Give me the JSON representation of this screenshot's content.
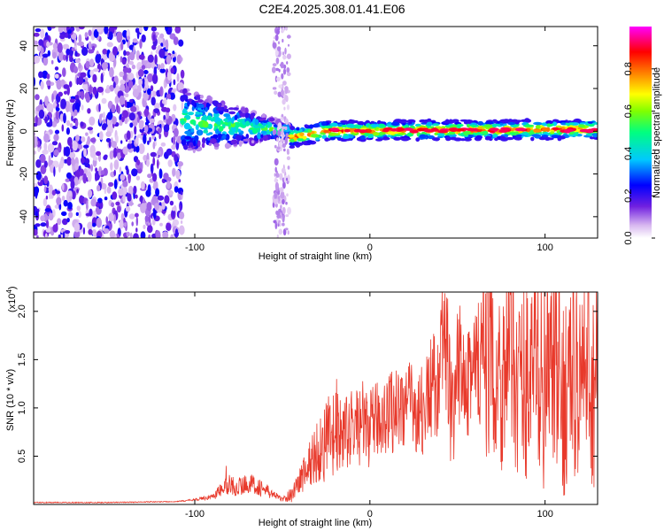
{
  "page": {
    "title": "C2E4.2025.308.01.41.E06"
  },
  "chart_data": [
    {
      "type": "heatmap",
      "xlabel": "Height of straight line (km)",
      "ylabel": "Frequency (Hz)",
      "xlim": [
        -192,
        130
      ],
      "ylim": [
        -50,
        49
      ],
      "xticks": [
        -100,
        0,
        100
      ],
      "xtick_labels": [
        "-100",
        "0",
        "100"
      ],
      "yticks": [
        -40,
        -20,
        0,
        20,
        40
      ],
      "ytick_labels": [
        "-40",
        "-20",
        "0",
        "20",
        "40"
      ],
      "colorbar": {
        "label": "Normalized spectral amplitude",
        "range": [
          0.0,
          1.0
        ],
        "ticks": [
          0.0,
          0.2,
          0.4,
          0.6,
          0.8
        ],
        "tick_labels": [
          "0.0",
          "0.2",
          "0.4",
          "0.6",
          "0.8"
        ],
        "colors": [
          "#ffffff",
          "#d8b8f0",
          "#7020e0",
          "#0000ff",
          "#00c8ff",
          "#00ff80",
          "#80ff00",
          "#ffff00",
          "#ff8000",
          "#ff0000",
          "#ff00ff"
        ]
      },
      "regions": [
        {
          "name": "noise",
          "x": [
            -192,
            -107
          ],
          "f": [
            -50,
            49
          ],
          "level": 0.15
        },
        {
          "name": "transition",
          "x": [
            -107,
            -45
          ],
          "f_center": [
            5,
            0
          ],
          "level": 0.45
        },
        {
          "name": "stripe",
          "x": [
            -55,
            -46
          ],
          "f": [
            -50,
            49
          ],
          "level": 0.08
        },
        {
          "name": "carrier",
          "x": [
            -45,
            130
          ],
          "f_center": [
            0,
            1
          ],
          "level": 0.85
        }
      ]
    },
    {
      "type": "line",
      "xlabel": "Height of straight line (km)",
      "ylabel": "SNR (10 * v/v)",
      "y_multiplier": "(x10",
      "y_multiplier_exp": "4",
      "y_multiplier_close": ")",
      "xlim": [
        -192,
        130
      ],
      "ylim": [
        0,
        2.2
      ],
      "xticks": [
        -100,
        0,
        100
      ],
      "xtick_labels": [
        "-100",
        "0",
        "100"
      ],
      "yticks": [
        0.5,
        1.0,
        1.5,
        2.0
      ],
      "ytick_labels": [
        "0.5",
        "1.0",
        "1.5",
        "2.0"
      ],
      "color": "#e8392b",
      "series": [
        {
          "name": "SNR",
          "x": [
            -192,
            -150,
            -110,
            -100,
            -90,
            -85,
            -80,
            -75,
            -70,
            -65,
            -60,
            -55,
            -50,
            -45,
            -40,
            -35,
            -30,
            -25,
            -20,
            -15,
            -10,
            -5,
            0,
            5,
            10,
            15,
            20,
            25,
            30,
            35,
            40,
            42,
            45,
            48,
            50,
            55,
            60,
            65,
            70,
            75,
            80,
            85,
            90,
            95,
            100,
            105,
            110,
            115,
            120,
            125,
            130
          ],
          "y": [
            0.02,
            0.02,
            0.03,
            0.05,
            0.08,
            0.15,
            0.2,
            0.18,
            0.22,
            0.2,
            0.15,
            0.1,
            0.05,
            0.1,
            0.25,
            0.4,
            0.55,
            0.65,
            0.7,
            0.72,
            0.8,
            0.85,
            0.78,
            0.9,
            0.95,
            1.0,
            1.05,
            1.0,
            0.95,
            1.2,
            1.3,
            1.75,
            1.4,
            0.7,
            1.4,
            1.55,
            1.3,
            1.5,
            1.45,
            1.3,
            1.7,
            1.25,
            1.3,
            1.5,
            1.2,
            1.4,
            1.1,
            1.35,
            1.3,
            1.2,
            1.25
          ],
          "amplitude": [
            0.005,
            0.005,
            0.005,
            0.01,
            0.03,
            0.08,
            0.12,
            0.1,
            0.1,
            0.1,
            0.08,
            0.05,
            0.02,
            0.08,
            0.15,
            0.25,
            0.35,
            0.45,
            0.5,
            0.35,
            0.4,
            0.45,
            0.4,
            0.4,
            0.45,
            0.45,
            0.5,
            0.45,
            0.5,
            0.55,
            0.6,
            0.7,
            0.7,
            0.5,
            0.7,
            0.8,
            0.9,
            1.0,
            1.0,
            1.0,
            1.05,
            1.05,
            1.05,
            1.1,
            1.1,
            1.1,
            1.1,
            1.1,
            1.15,
            1.15,
            1.1
          ],
          "spikes": [
            {
              "x": -82,
              "y": 0.4
            },
            {
              "x": -19,
              "y": 1.3
            },
            {
              "x": 41,
              "y": 1.92
            },
            {
              "x": 82,
              "y": 2.2
            },
            {
              "x": 125,
              "y": 2.2
            },
            {
              "x": 64,
              "y": 1.88
            },
            {
              "x": 103,
              "y": 1.98
            },
            {
              "x": 46,
              "y": 0.45
            }
          ]
        }
      ]
    }
  ]
}
